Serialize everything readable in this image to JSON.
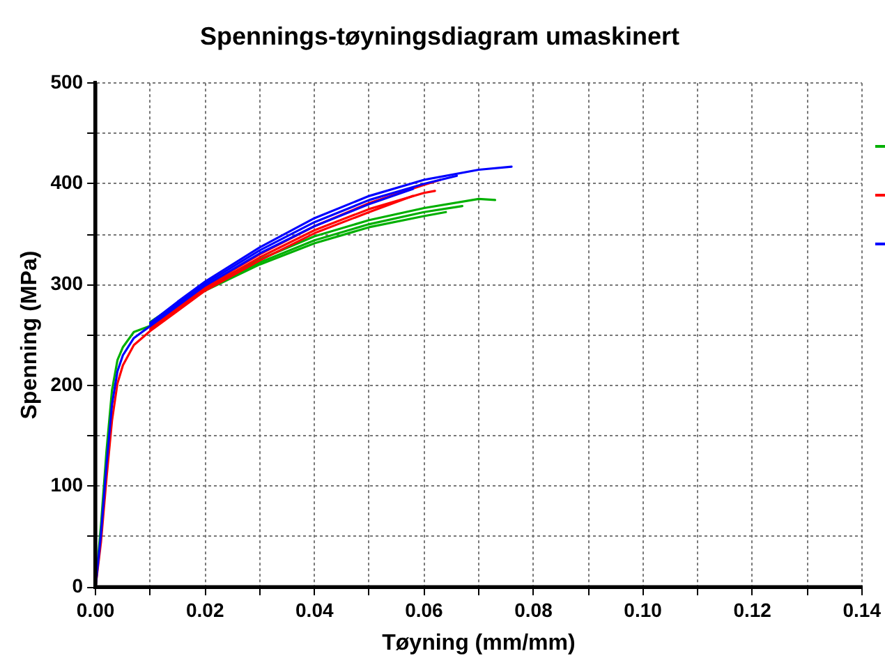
{
  "chart_data": {
    "type": "line",
    "title": "Spennings-tøyningsdiagram umaskinert",
    "xlabel": "Tøyning (mm/mm)",
    "ylabel": "Spenning (MPa)",
    "xlim": [
      0,
      0.14
    ],
    "xticks": [
      {
        "value": 0,
        "label": "0.00"
      },
      {
        "value": 0.01,
        "label": null
      },
      0.02,
      {
        "value": 0.03,
        "label": null
      },
      0.04,
      {
        "value": 0.05,
        "label": null
      },
      0.06,
      {
        "value": 0.07,
        "label": null
      },
      0.08,
      {
        "value": 0.09,
        "label": null
      },
      {
        "value": 0.1,
        "label": "0.10"
      },
      {
        "value": 0.11,
        "label": null
      },
      0.12,
      {
        "value": 0.13,
        "label": null
      },
      0.14
    ],
    "ylim": [
      0,
      500
    ],
    "yticks": [
      0,
      {
        "value": 50,
        "label": null
      },
      100,
      {
        "value": 150,
        "label": null
      },
      200,
      {
        "value": 250,
        "label": null
      },
      300,
      {
        "value": 350,
        "label": null
      },
      400,
      {
        "value": 450,
        "label": null
      },
      500
    ],
    "grid": true,
    "marker": "none",
    "line_style": "solid",
    "series": [
      {
        "color": "#00b000",
        "x": [
          0.01,
          0.015,
          0.02,
          0.03,
          0.04,
          0.05,
          0.06,
          0.07,
          0.073
        ],
        "values": [
          263,
          281,
          298,
          325,
          348,
          364,
          376,
          385,
          384
        ]
      },
      {
        "color": "#00b000",
        "x": [
          0.01,
          0.015,
          0.02,
          0.03,
          0.04,
          0.05,
          0.06,
          0.067
        ],
        "values": [
          260,
          279,
          296,
          322,
          344,
          360,
          372,
          378
        ]
      },
      {
        "color": "#00b000",
        "x": [
          0,
          0.001,
          0.002,
          0.003,
          0.004,
          0.005,
          0.007,
          0.01,
          0.015,
          0.02,
          0.03,
          0.04,
          0.05,
          0.06,
          0.064
        ],
        "values": [
          0,
          62,
          135,
          195,
          225,
          238,
          253,
          259,
          277,
          294,
          320,
          341,
          357,
          368,
          372
        ]
      },
      {
        "color": "#ff0000",
        "x": [
          0.01,
          0.015,
          0.02,
          0.03,
          0.04,
          0.05,
          0.06,
          0.063
        ],
        "values": [
          258,
          278,
          298,
          330,
          358,
          381,
          399,
          404
        ]
      },
      {
        "color": "#ff0000",
        "x": [
          0.01,
          0.015,
          0.02,
          0.03,
          0.04,
          0.05,
          0.06,
          0.062
        ],
        "values": [
          256,
          276,
          296,
          327,
          354,
          375,
          391,
          393
        ]
      },
      {
        "color": "#ff0000",
        "x": [
          0,
          0.001,
          0.002,
          0.003,
          0.004,
          0.005,
          0.007,
          0.01,
          0.015,
          0.02,
          0.03,
          0.04,
          0.05,
          0.058
        ],
        "values": [
          0,
          45,
          108,
          165,
          202,
          220,
          240,
          254,
          274,
          294,
          324,
          351,
          372,
          388
        ]
      },
      {
        "color": "#0000ff",
        "x": [
          0.01,
          0.015,
          0.02,
          0.03,
          0.04,
          0.05,
          0.06,
          0.07,
          0.076
        ],
        "values": [
          262,
          283,
          303,
          337,
          366,
          388,
          404,
          414,
          417
        ]
      },
      {
        "color": "#0000ff",
        "x": [
          0.01,
          0.015,
          0.02,
          0.03,
          0.04,
          0.05,
          0.06,
          0.066
        ],
        "values": [
          261,
          281,
          301,
          334,
          362,
          384,
          400,
          408
        ]
      },
      {
        "color": "#0000ff",
        "x": [
          0,
          0.001,
          0.002,
          0.003,
          0.004,
          0.005,
          0.007,
          0.01,
          0.015,
          0.02,
          0.03,
          0.04,
          0.05,
          0.058
        ],
        "values": [
          0,
          53,
          121,
          181,
          214,
          230,
          247,
          259,
          279,
          299,
          331,
          358,
          380,
          395
        ]
      }
    ]
  }
}
